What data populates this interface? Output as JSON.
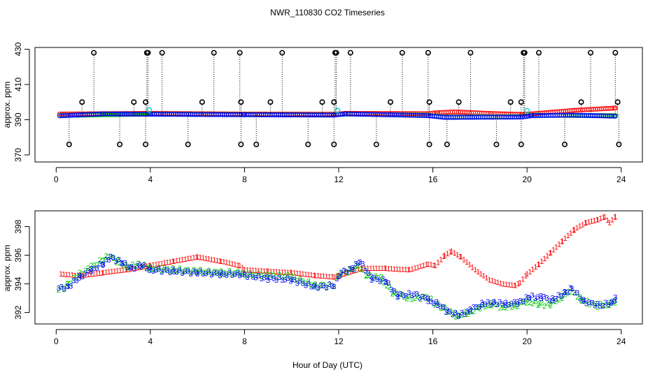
{
  "chart_data": [
    {
      "type": "scatter",
      "title": "NWR_110830  CO2 Timeseries",
      "xlabel": "",
      "ylabel": "approx. ppm",
      "xlim": [
        -0.9,
        24.9
      ],
      "ylim": [
        366,
        431
      ],
      "xticks": [
        0,
        4,
        8,
        12,
        16,
        20,
        24
      ],
      "yticks": [
        370,
        390,
        410,
        430
      ],
      "xtick_labels": [
        "0",
        "4",
        "8",
        "12",
        "16",
        "20",
        "24"
      ],
      "ytick_labels": [
        "370",
        "390",
        "410",
        "430"
      ],
      "series": [
        {
          "name": "red",
          "color": "#ff0000",
          "marker": "circle",
          "description": "steady ~393 ppm then rising to ~397 after 20h"
        },
        {
          "name": "blue",
          "color": "#0000ff",
          "marker": "circle"
        },
        {
          "name": "green",
          "color": "#00cc00",
          "marker": "circle"
        },
        {
          "name": "cyan",
          "color": "#00cccc",
          "marker": "circle",
          "points": [
            [
              3.95,
              395.5
            ],
            [
              11.95,
              395.2
            ],
            [
              20.0,
              395.1
            ]
          ]
        },
        {
          "name": "black-high",
          "color": "#000000",
          "marker": "circle",
          "points": [
            [
              1.6,
              428
            ],
            [
              3.85,
              428
            ],
            [
              3.9,
              428
            ],
            [
              4.5,
              428
            ],
            [
              6.7,
              428
            ],
            [
              7.8,
              428
            ],
            [
              9.6,
              428
            ],
            [
              11.85,
              428
            ],
            [
              11.9,
              428
            ],
            [
              12.5,
              428
            ],
            [
              14.7,
              428
            ],
            [
              15.8,
              428
            ],
            [
              17.6,
              428
            ],
            [
              19.85,
              428
            ],
            [
              19.9,
              428
            ],
            [
              20.5,
              428
            ],
            [
              22.7,
              428
            ],
            [
              23.75,
              428
            ]
          ]
        },
        {
          "name": "black-mid",
          "color": "#000000",
          "marker": "circle",
          "points": [
            [
              1.1,
              400
            ],
            [
              3.3,
              400
            ],
            [
              3.8,
              400
            ],
            [
              6.2,
              400
            ],
            [
              7.85,
              400
            ],
            [
              9.1,
              400
            ],
            [
              11.3,
              400
            ],
            [
              11.8,
              400
            ],
            [
              14.2,
              400
            ],
            [
              15.85,
              400
            ],
            [
              17.1,
              400
            ],
            [
              19.3,
              400
            ],
            [
              19.75,
              400
            ],
            [
              22.3,
              400
            ],
            [
              23.85,
              400
            ]
          ]
        },
        {
          "name": "black-low",
          "color": "#000000",
          "marker": "circle",
          "points": [
            [
              0.55,
              376
            ],
            [
              2.7,
              376
            ],
            [
              3.8,
              376
            ],
            [
              5.6,
              376
            ],
            [
              7.85,
              376
            ],
            [
              8.5,
              376
            ],
            [
              10.7,
              376
            ],
            [
              11.8,
              376
            ],
            [
              13.6,
              376
            ],
            [
              15.85,
              376
            ],
            [
              16.6,
              376
            ],
            [
              18.7,
              376
            ],
            [
              19.75,
              376
            ],
            [
              21.6,
              376
            ],
            [
              23.9,
              376
            ]
          ]
        }
      ]
    },
    {
      "type": "scatter",
      "title": "",
      "xlabel": "Hour of Day (UTC)",
      "ylabel": "approx. ppm",
      "xlim": [
        -0.9,
        24.9
      ],
      "ylim": [
        391.2,
        399.1
      ],
      "xticks": [
        0,
        4,
        8,
        12,
        16,
        20,
        24
      ],
      "yticks": [
        392,
        394,
        396,
        398
      ],
      "xtick_labels": [
        "0",
        "4",
        "8",
        "12",
        "16",
        "20",
        "24"
      ],
      "ytick_labels": [
        "392",
        "394",
        "396",
        "398"
      ],
      "series": [
        {
          "name": "1",
          "color": "#ff0000",
          "marker": "1",
          "points": [
            [
              0.2,
              394.7
            ],
            [
              1,
              394.6
            ],
            [
              2,
              394.8
            ],
            [
              3,
              395.0
            ],
            [
              4,
              395.3
            ],
            [
              5,
              395.6
            ],
            [
              6,
              395.9
            ],
            [
              7,
              395.6
            ],
            [
              7.8,
              395.3
            ],
            [
              8,
              395.0
            ],
            [
              9,
              394.9
            ],
            [
              10,
              394.8
            ],
            [
              11,
              394.6
            ],
            [
              11.8,
              394.5
            ],
            [
              12,
              394.6
            ],
            [
              13,
              395.1
            ],
            [
              14,
              395.1
            ],
            [
              15,
              395.0
            ],
            [
              15.8,
              395.4
            ],
            [
              16.1,
              395.3
            ],
            [
              16.5,
              396.0
            ],
            [
              16.8,
              396.3
            ],
            [
              17.2,
              395.9
            ],
            [
              17.8,
              395.0
            ],
            [
              18.4,
              394.3
            ],
            [
              19,
              394.0
            ],
            [
              19.5,
              393.9
            ],
            [
              19.7,
              394.1
            ],
            [
              20,
              394.7
            ],
            [
              20.5,
              395.4
            ],
            [
              21,
              396.2
            ],
            [
              21.5,
              397.0
            ],
            [
              22,
              397.8
            ],
            [
              22.5,
              398.3
            ],
            [
              23,
              398.5
            ],
            [
              23.3,
              398.7
            ],
            [
              23.5,
              398.3
            ],
            [
              23.75,
              398.7
            ]
          ]
        },
        {
          "name": "2",
          "color": "#00cc00",
          "marker": "2",
          "points": [
            [
              0.1,
              393.6
            ],
            [
              0.5,
              394.0
            ],
            [
              1,
              394.7
            ],
            [
              1.5,
              395.2
            ],
            [
              2,
              395.7
            ],
            [
              2.2,
              396.0
            ],
            [
              2.6,
              395.6
            ],
            [
              3,
              395.2
            ],
            [
              3.5,
              395.4
            ],
            [
              4,
              395.1
            ],
            [
              5,
              395.0
            ],
            [
              6,
              394.9
            ],
            [
              7,
              394.8
            ],
            [
              7.8,
              394.8
            ],
            [
              8,
              394.7
            ],
            [
              9,
              394.6
            ],
            [
              10,
              394.5
            ],
            [
              11,
              393.9
            ],
            [
              11.8,
              393.9
            ],
            [
              12,
              394.7
            ],
            [
              12.5,
              395.0
            ],
            [
              12.8,
              395.3
            ],
            [
              13.2,
              394.6
            ],
            [
              13.8,
              394.4
            ],
            [
              14.3,
              393.4
            ],
            [
              15,
              393.0
            ],
            [
              15.8,
              393.1
            ],
            [
              16.1,
              392.6
            ],
            [
              16.5,
              392.3
            ],
            [
              17,
              391.8
            ],
            [
              17.5,
              392.0
            ],
            [
              18,
              392.4
            ],
            [
              18.5,
              392.6
            ],
            [
              19,
              392.4
            ],
            [
              19.5,
              392.5
            ],
            [
              20,
              392.8
            ],
            [
              20.5,
              392.6
            ],
            [
              21,
              392.6
            ],
            [
              21.5,
              393.1
            ],
            [
              21.9,
              393.6
            ],
            [
              22.3,
              392.9
            ],
            [
              23,
              392.5
            ],
            [
              23.5,
              392.6
            ],
            [
              23.75,
              392.8
            ]
          ]
        },
        {
          "name": "3",
          "color": "#0000ff",
          "marker": "3",
          "points": [
            [
              0.1,
              393.7
            ],
            [
              0.5,
              393.8
            ],
            [
              1,
              394.5
            ],
            [
              1.5,
              395.0
            ],
            [
              2,
              395.4
            ],
            [
              2.3,
              395.9
            ],
            [
              2.8,
              395.5
            ],
            [
              3.2,
              395.1
            ],
            [
              3.6,
              395.3
            ],
            [
              4,
              395.0
            ],
            [
              5,
              394.9
            ],
            [
              6,
              394.8
            ],
            [
              7,
              394.7
            ],
            [
              7.8,
              394.7
            ],
            [
              8,
              394.6
            ],
            [
              9,
              394.4
            ],
            [
              10,
              394.3
            ],
            [
              11,
              393.8
            ],
            [
              11.8,
              393.9
            ],
            [
              12.1,
              394.8
            ],
            [
              12.6,
              395.1
            ],
            [
              12.9,
              395.6
            ],
            [
              13.4,
              394.4
            ],
            [
              14,
              394.2
            ],
            [
              14.5,
              393.2
            ],
            [
              15.2,
              393.3
            ],
            [
              15.8,
              392.9
            ],
            [
              16.2,
              392.6
            ],
            [
              16.6,
              392.1
            ],
            [
              17.1,
              391.8
            ],
            [
              17.6,
              392.2
            ],
            [
              18.1,
              392.6
            ],
            [
              18.6,
              392.7
            ],
            [
              19.1,
              392.6
            ],
            [
              19.6,
              392.7
            ],
            [
              20.1,
              393.1
            ],
            [
              20.6,
              393.1
            ],
            [
              21.1,
              392.9
            ],
            [
              21.6,
              393.4
            ],
            [
              21.9,
              393.7
            ],
            [
              22.4,
              392.8
            ],
            [
              23.1,
              392.5
            ],
            [
              23.6,
              392.7
            ],
            [
              23.75,
              393.0
            ]
          ]
        }
      ]
    }
  ]
}
